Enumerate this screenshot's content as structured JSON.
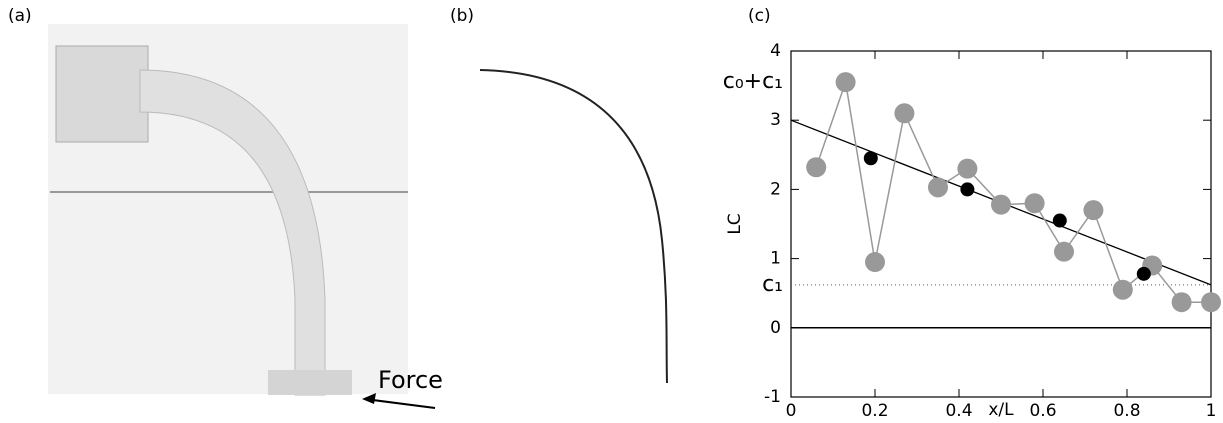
{
  "panel_labels": [
    "(a)",
    "(b)",
    "(c)"
  ],
  "force_label": "Force",
  "chart_data": {
    "type": "scatter",
    "xlabel": "x/L",
    "ylabel": "LC",
    "xlim": [
      0,
      1
    ],
    "ylim": [
      -1,
      4
    ],
    "xticks": [
      0,
      0.2,
      0.4,
      0.6,
      0.8,
      1
    ],
    "yticks": [
      -1,
      0,
      1,
      2,
      3,
      4
    ],
    "zero_line": true,
    "series": [
      {
        "color": "#999999",
        "connected": true,
        "x": [
          0.06,
          0.13,
          0.2,
          0.27,
          0.35,
          0.42,
          0.5,
          0.58,
          0.65,
          0.72,
          0.79,
          0.86,
          0.93,
          1.0
        ],
        "values": [
          2.32,
          3.55,
          0.95,
          3.1,
          2.03,
          2.3,
          1.78,
          1.8,
          1.1,
          1.7,
          0.55,
          0.9,
          0.37,
          0.37
        ]
      },
      {
        "color": "#000000",
        "connected": false,
        "x": [
          0.19,
          0.42,
          0.64,
          0.84
        ],
        "values": [
          2.45,
          2.0,
          1.55,
          0.78
        ]
      }
    ],
    "fit_line": {
      "x": [
        0,
        1
      ],
      "y": [
        3.0,
        0.62
      ]
    },
    "reference_line": {
      "y": 0.62
    },
    "annotations": [
      {
        "text": "c₀+c₁",
        "y": 3.55
      },
      {
        "text": "c₁",
        "y": 0.62
      }
    ]
  }
}
